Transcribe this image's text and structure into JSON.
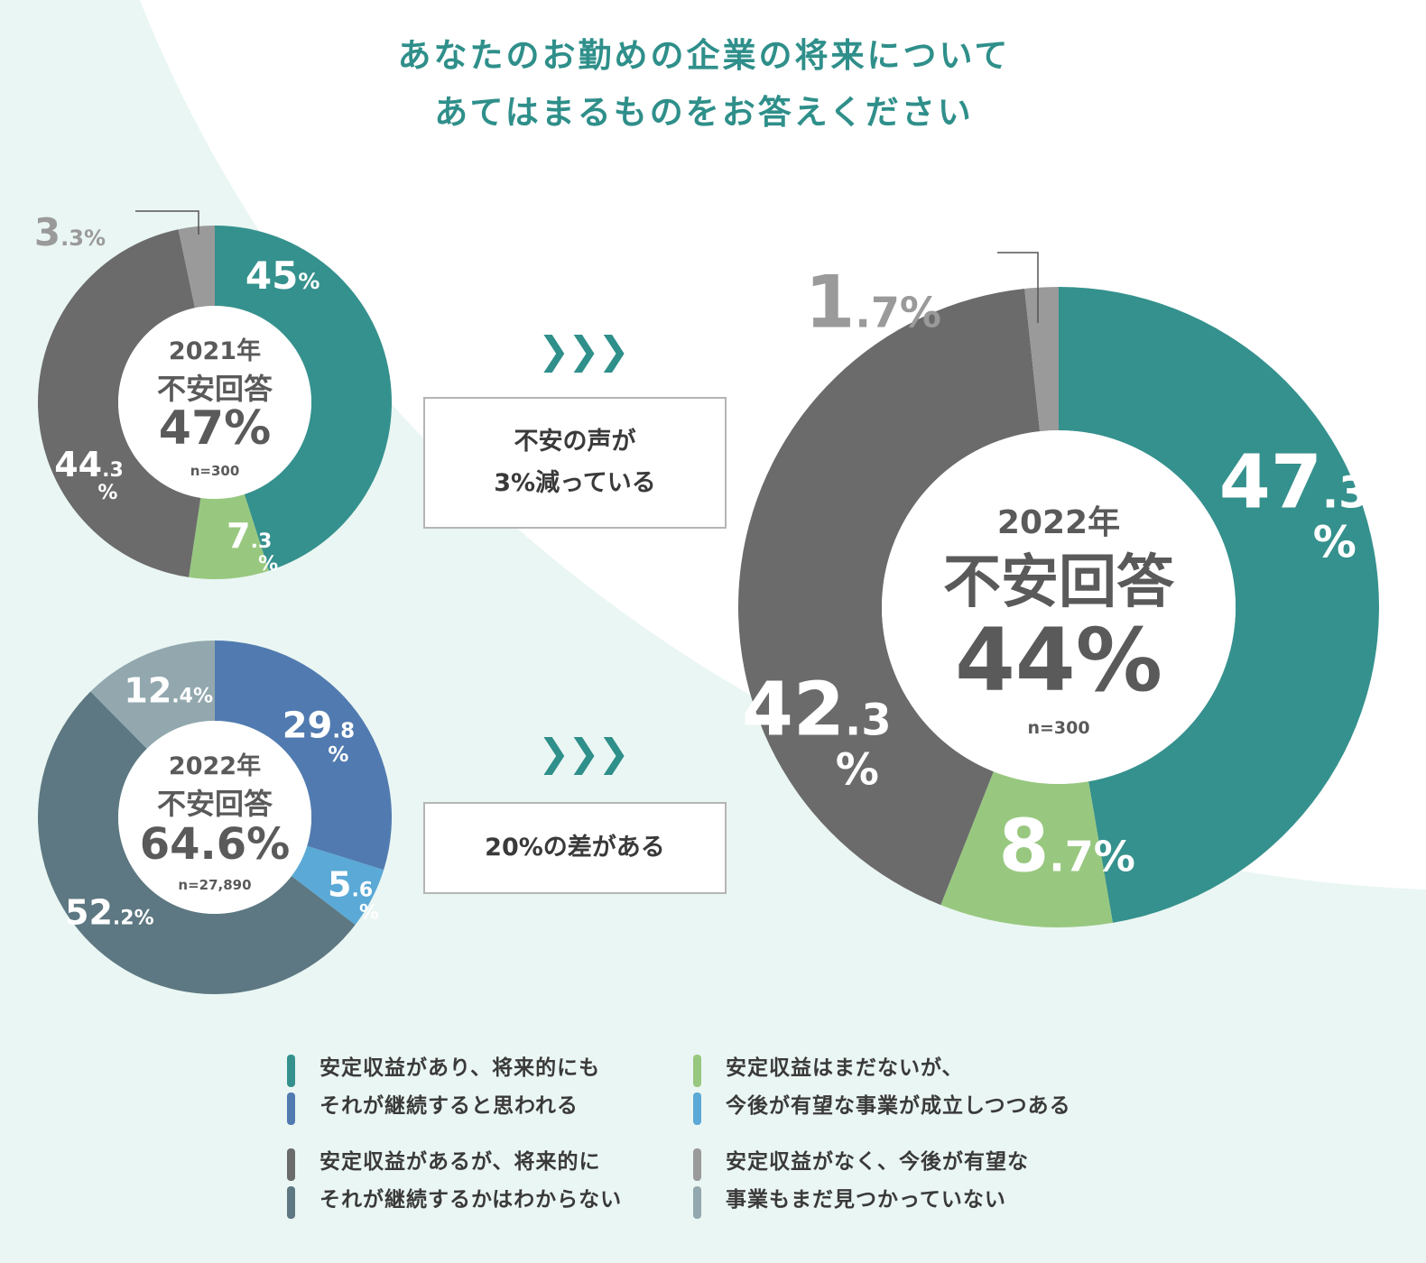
{
  "title": {
    "line1": "あなたのお勤めの企業の将来について",
    "line2": "あてはまるものをお答えください"
  },
  "colors": {
    "teal": "#35918d",
    "green": "#98c87f",
    "gray": "#6b6b6b",
    "light_gray": "#9a9a9a",
    "blue": "#517bb0",
    "light_blue": "#5ba9d6",
    "slate": "#5d7882",
    "light_slate": "#92a8ae",
    "accent": "#2f8f8a"
  },
  "chart_data": [
    {
      "type": "pie",
      "donut": true,
      "center": {
        "year": "2021年",
        "label": "不安回答",
        "value": "47%",
        "n": "n=300"
      },
      "slices": [
        {
          "value": 45,
          "int": "45",
          "dec": "",
          "pct": "%",
          "color": "#35918d"
        },
        {
          "value": 7.3,
          "int": "7",
          "dec": ".3",
          "pct": "%",
          "color": "#98c87f"
        },
        {
          "value": 44.3,
          "int": "44",
          "dec": ".3",
          "pct": "%",
          "color": "#6b6b6b"
        },
        {
          "value": 3.3,
          "int": "3",
          "dec": ".3",
          "pct": "%",
          "color": "#9a9a9a"
        }
      ]
    },
    {
      "type": "pie",
      "donut": true,
      "center": {
        "year": "2022年",
        "label": "不安回答",
        "value": "64.6%",
        "n": "n=27,890"
      },
      "slices": [
        {
          "value": 29.8,
          "int": "29",
          "dec": ".8",
          "pct": "%",
          "color": "#517bb0"
        },
        {
          "value": 5.6,
          "int": "5",
          "dec": ".6",
          "pct": "%",
          "color": "#5ba9d6"
        },
        {
          "value": 52.2,
          "int": "52",
          "dec": ".2",
          "pct": "%",
          "color": "#5d7882"
        },
        {
          "value": 12.4,
          "int": "12",
          "dec": ".4",
          "pct": "%",
          "color": "#92a8ae"
        }
      ]
    },
    {
      "type": "pie",
      "donut": true,
      "center": {
        "year": "2022年",
        "label": "不安回答",
        "value": "44%",
        "n": "n=300"
      },
      "slices": [
        {
          "value": 47.3,
          "int": "47",
          "dec": ".3",
          "pct": "%",
          "color": "#35918d"
        },
        {
          "value": 8.7,
          "int": "8",
          "dec": ".7",
          "pct": "%",
          "color": "#98c87f"
        },
        {
          "value": 42.3,
          "int": "42",
          "dec": ".3",
          "pct": "%",
          "color": "#6b6b6b"
        },
        {
          "value": 1.7,
          "int": "1",
          "dec": ".7",
          "pct": "%",
          "color": "#9a9a9a"
        }
      ]
    }
  ],
  "comparisons": [
    {
      "arrows": "❯❯❯",
      "line1": "不安の声が",
      "line2": "3%減っている"
    },
    {
      "arrows": "❯❯❯",
      "line1": "20%の差がある",
      "line2": ""
    }
  ],
  "legend": [
    {
      "line1": "安定収益があり、将来的にも",
      "line2": "それが継続すると思われる",
      "color1": "#35918d",
      "color2": "#517bb0"
    },
    {
      "line1": "安定収益はまだないが、",
      "line2": "今後が有望な事業が成立しつつある",
      "color1": "#98c87f",
      "color2": "#5ba9d6"
    },
    {
      "line1": "安定収益があるが、将来的に",
      "line2": "それが継続するかはわからない",
      "color1": "#6b6b6b",
      "color2": "#5d7882"
    },
    {
      "line1": "安定収益がなく、今後が有望な",
      "line2": "事業もまだ見つかっていない",
      "color1": "#9a9a9a",
      "color2": "#92a8ae"
    }
  ]
}
